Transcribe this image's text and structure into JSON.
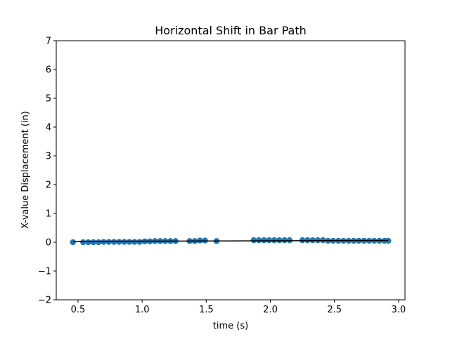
{
  "chart_data": {
    "type": "scatter",
    "title": "Horizontal Shift in Bar Path",
    "xlabel": "time (s)",
    "ylabel": "X-value Displacement (in)",
    "xlim": [
      0.33,
      3.05
    ],
    "ylim": [
      -2,
      7
    ],
    "xticks": [
      "0.5",
      "1.0",
      "1.5",
      "2.0",
      "2.5",
      "3.0"
    ],
    "xtick_values": [
      0.5,
      1.0,
      1.5,
      2.0,
      2.5,
      3.0
    ],
    "yticks": [
      "−2",
      "−1",
      "0",
      "1",
      "2",
      "3",
      "4",
      "5",
      "6",
      "7"
    ],
    "ytick_values": [
      -2,
      -1,
      0,
      1,
      2,
      3,
      4,
      5,
      6,
      7
    ],
    "grid": false,
    "legend": false,
    "marker_color": "#1f77b4",
    "fit_line_color": "#000000",
    "series": [
      {
        "x": [
          0.46,
          0.54,
          0.58,
          0.62,
          0.66,
          0.7,
          0.74,
          0.78,
          0.82,
          0.86,
          0.9,
          0.94,
          0.98,
          1.02,
          1.06,
          1.1,
          1.14,
          1.18,
          1.22,
          1.26,
          1.37,
          1.41,
          1.45,
          1.49,
          1.58,
          1.87,
          1.91,
          1.95,
          1.99,
          2.03,
          2.07,
          2.11,
          2.15,
          2.25,
          2.29,
          2.33,
          2.37,
          2.41,
          2.45,
          2.49,
          2.53,
          2.57,
          2.61,
          2.65,
          2.69,
          2.73,
          2.77,
          2.81,
          2.85,
          2.89,
          2.92
        ],
        "y": [
          0.0,
          0.0,
          0.0,
          0.0,
          0.0,
          0.01,
          0.01,
          0.01,
          0.01,
          0.01,
          0.01,
          0.01,
          0.01,
          0.03,
          0.03,
          0.04,
          0.04,
          0.04,
          0.04,
          0.04,
          0.04,
          0.04,
          0.06,
          0.06,
          0.04,
          0.07,
          0.07,
          0.07,
          0.07,
          0.07,
          0.07,
          0.07,
          0.07,
          0.07,
          0.07,
          0.07,
          0.07,
          0.07,
          0.05,
          0.05,
          0.05,
          0.05,
          0.05,
          0.05,
          0.05,
          0.05,
          0.05,
          0.05,
          0.05,
          0.05,
          0.05
        ]
      }
    ],
    "fit_line": {
      "x": [
        0.46,
        2.92
      ],
      "y": [
        0.03,
        0.06
      ]
    }
  }
}
